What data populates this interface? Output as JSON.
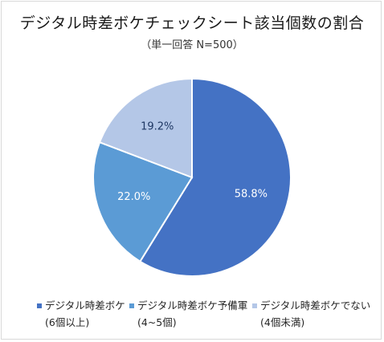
{
  "chart_data": {
    "type": "pie",
    "title": "デジタル時差ボケチェックシート該当個数の割合",
    "subtitle": "（単一回答 N=500）",
    "categories": [
      "デジタル時差ボケ",
      "デジタル時差ボケ予備軍",
      "デジタル時差ボケでない"
    ],
    "category_notes": [
      "(6個以上)",
      "(4~5個)",
      "(4個未満)"
    ],
    "values": [
      58.8,
      22.0,
      19.2
    ],
    "value_labels": [
      "58.8%",
      "22.0%",
      "19.2%"
    ],
    "colors": [
      "#4472c4",
      "#5b9bd5",
      "#b4c7e7"
    ],
    "label_colors": [
      "#ffffff",
      "#ffffff",
      "#1f3864"
    ],
    "legend": "bottom"
  }
}
